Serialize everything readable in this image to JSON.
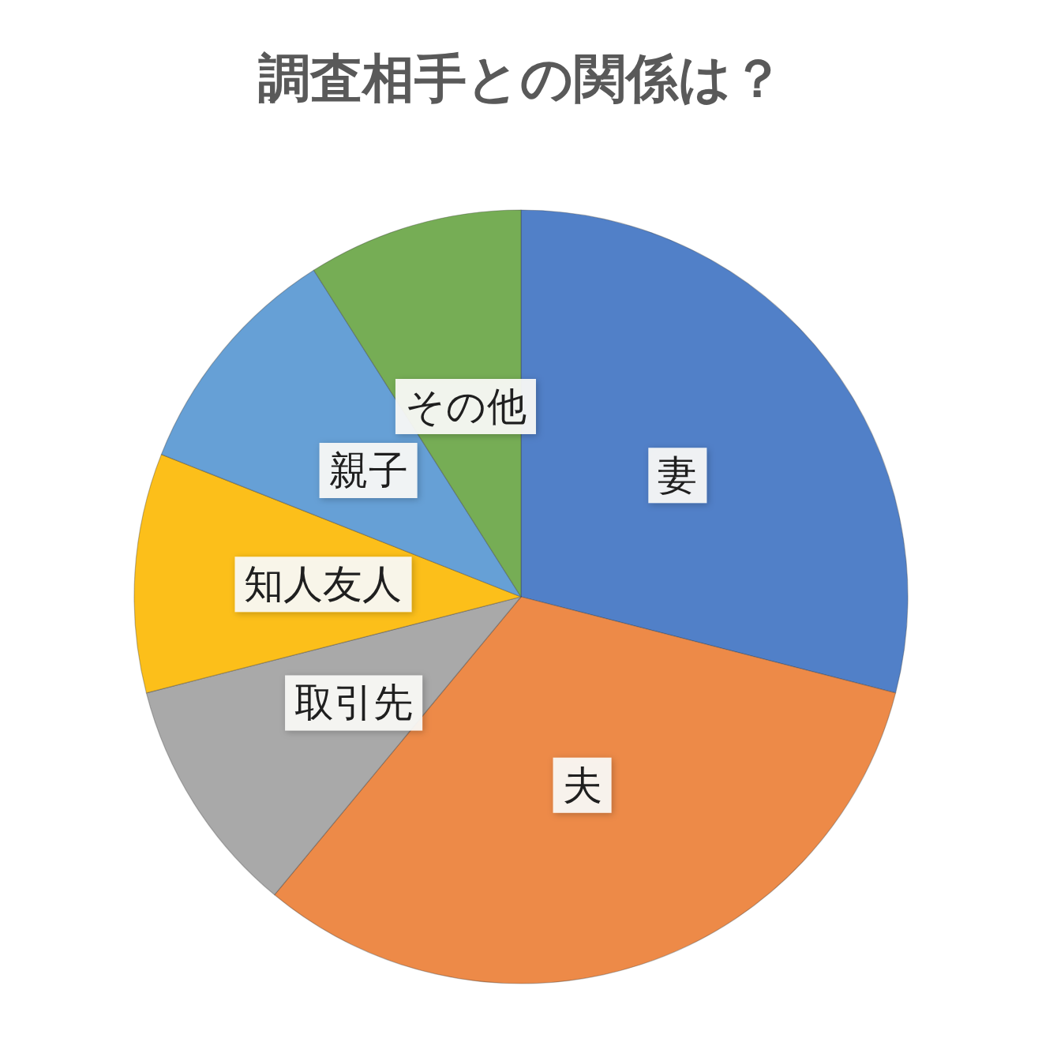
{
  "chart_data": {
    "type": "pie",
    "title": "調査相手との関係は？",
    "categories": [
      "妻",
      "夫",
      "取引先",
      "知人友人",
      "親子",
      "その他"
    ],
    "values": [
      29,
      32,
      10,
      10,
      10,
      9
    ],
    "colors": [
      "#5180c8",
      "#ed8a48",
      "#a9a9a9",
      "#fcbf1a",
      "#66a0d6",
      "#76ad55"
    ]
  }
}
